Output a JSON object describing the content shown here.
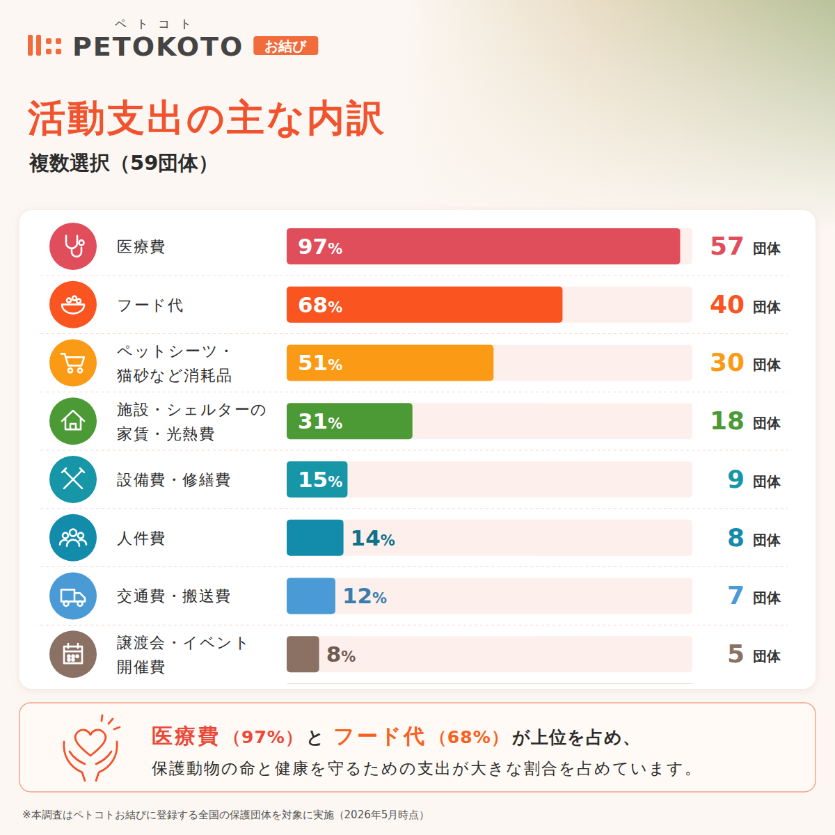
{
  "header": {
    "logo": "PETOKOTO",
    "logo_ruby": "ペトコト",
    "badge": "お結び"
  },
  "chart_data": {
    "type": "bar",
    "orientation": "horizontal",
    "title": "活動支出の主な内訳",
    "subtitle": "複数選択（59団体）",
    "categories": [
      "医療費",
      "フード代",
      "ペットシーツ・\n猫砂など消耗品",
      "施設・シェルターの\n家賃・光熱費",
      "設備費・修繕費",
      "人件費",
      "交通費・搬送費",
      "譲渡会・イベント\n開催費"
    ],
    "values": [
      97,
      68,
      51,
      31,
      15,
      14,
      12,
      8
    ],
    "value_labels": [
      "97%",
      "68%",
      "51%",
      "31%",
      "15%",
      "14%",
      "12%",
      "8%"
    ],
    "data_labels": true,
    "counts": [
      57,
      40,
      30,
      18,
      9,
      8,
      7,
      5
    ],
    "count_unit": "団体",
    "colors": [
      "#e04e5c",
      "#fa5420",
      "#fb9a14",
      "#4b9a35",
      "#1796a8",
      "#138bab",
      "#4a9ad6",
      "#8a7164"
    ],
    "xlim": [
      0,
      100
    ],
    "tick_labels": false,
    "grid": false,
    "annotation": {
      "lines": [
        [
          "医療費",
          "（97%）",
          "と",
          "フード代",
          "（68%）",
          "が上位を占め、"
        ],
        [
          "保護動物の命と健康を守るための支出が大きな割合を占めています。"
        ]
      ]
    }
  },
  "footnote": "※本調査はペトコトお結びに登録する全国の保護団体を対象に実施（2026年5月時点）"
}
